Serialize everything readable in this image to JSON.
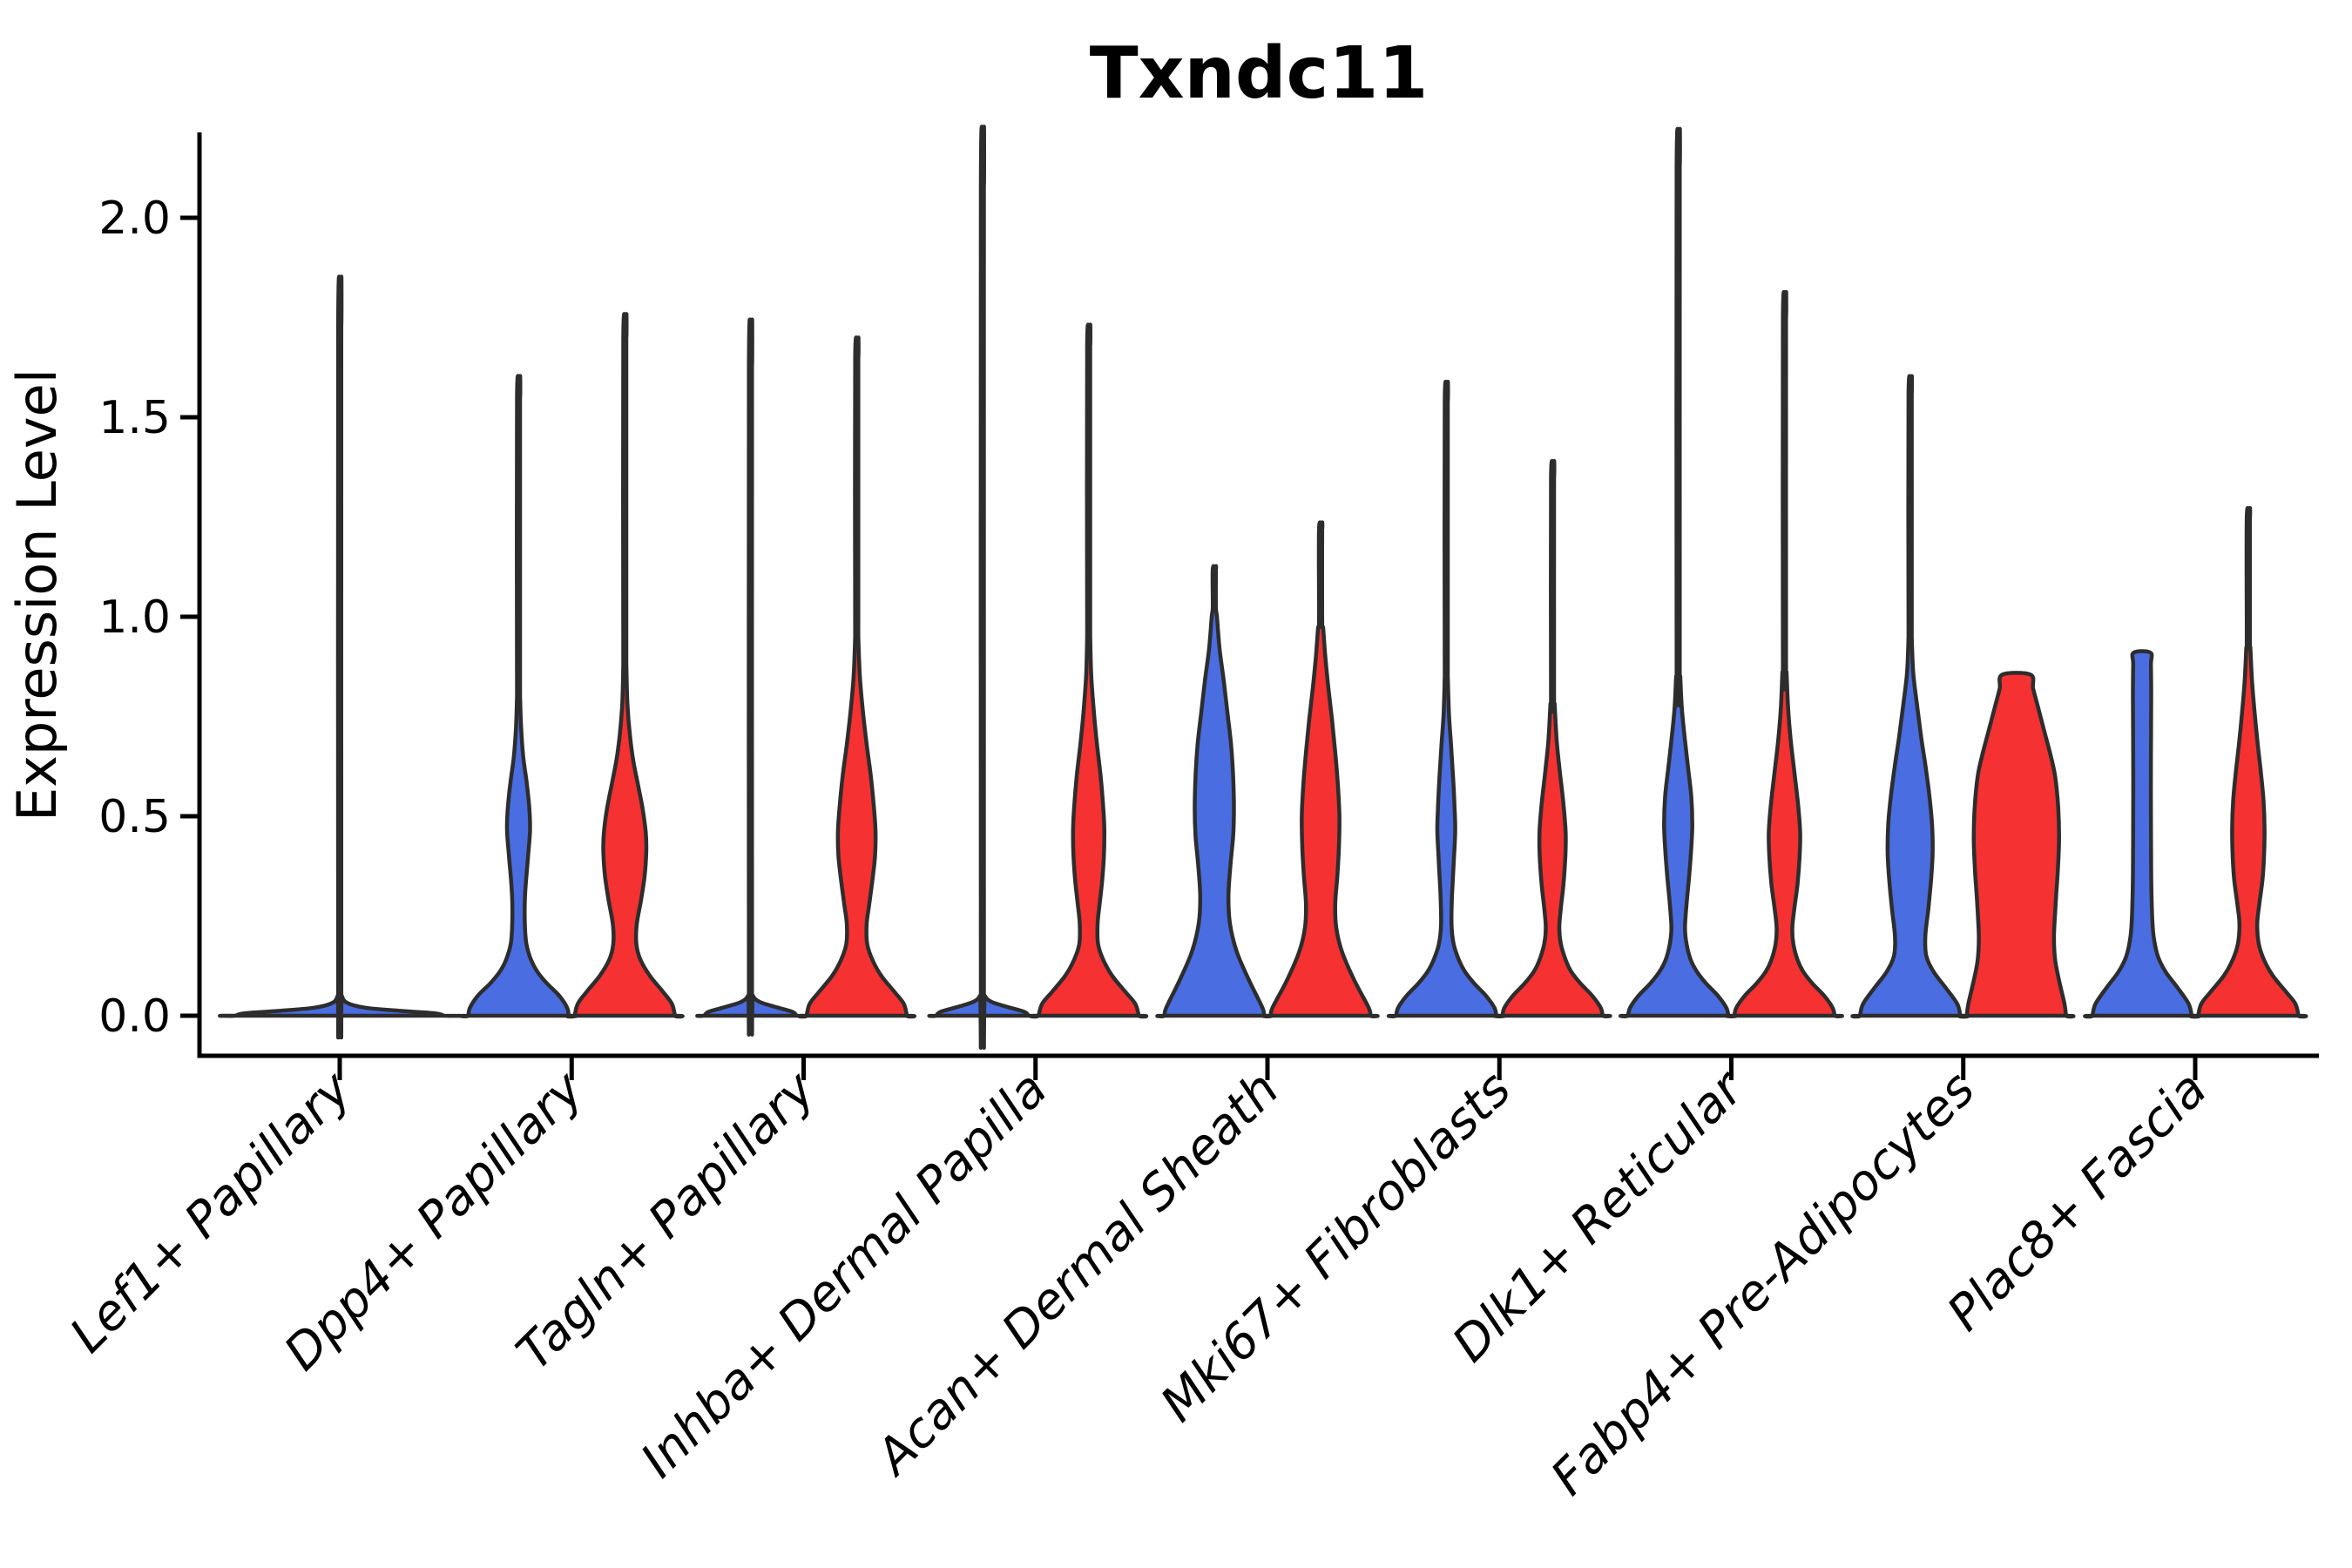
{
  "figure": {
    "title": "Txndc11"
  },
  "style": {
    "blue": "#4a6de1",
    "red": "#f53131",
    "violin_stroke": "#2d2d2d",
    "axis_color": "#000000",
    "text_color": "#000000",
    "background": "#ffffff"
  },
  "chart_data": {
    "type": "violin",
    "title": "Txndc11",
    "xlabel": "",
    "ylabel": "Expression Level",
    "ylim": [
      -0.1,
      2.2
    ],
    "grid": false,
    "legend": "none",
    "yticks": [
      0.0,
      0.5,
      1.0,
      1.5,
      2.0
    ],
    "ytick_labels": [
      "0.0",
      "0.5",
      "1.0",
      "1.5",
      "2.0"
    ],
    "categories": [
      "Lef1+ Papillary",
      "Dpp4+ Papillary",
      "Tagln+ Papillary",
      "Inhba+ Dermal Papilla",
      "Acan+ Dermal Sheath",
      "Mki67+ Fibroblasts",
      "Dlk1+ Reticular",
      "Fabp4+ Pre-Adipocytes",
      "Plac8+ Fascia"
    ],
    "groups": [
      {
        "id": "group1",
        "color_key": "blue"
      },
      {
        "id": "group2",
        "color_key": "red"
      }
    ],
    "violins": [
      {
        "category": 0,
        "group": "group1",
        "offset": 0,
        "halfwidth": 122,
        "max_expression": 1.73,
        "flat_top": false,
        "spike": 1.73,
        "profile": [
          [
            0,
            0.98
          ],
          [
            0.006,
            0.9
          ],
          [
            0.012,
            0.58
          ],
          [
            0.02,
            0.24
          ],
          [
            0.032,
            0.07
          ],
          [
            0.05,
            0.02
          ]
        ]
      },
      {
        "category": 1,
        "group": "group1",
        "offset": -61,
        "halfwidth": 60,
        "max_expression": 1.55,
        "flat_top": false,
        "spike": 1.55,
        "profile": [
          [
            0,
            0.96
          ],
          [
            0.02,
            0.93
          ],
          [
            0.05,
            0.78
          ],
          [
            0.08,
            0.55
          ],
          [
            0.11,
            0.36
          ],
          [
            0.14,
            0.24
          ],
          [
            0.18,
            0.15
          ],
          [
            0.23,
            0.12
          ],
          [
            0.29,
            0.12
          ],
          [
            0.35,
            0.15
          ],
          [
            0.41,
            0.19
          ],
          [
            0.47,
            0.22
          ],
          [
            0.53,
            0.2
          ],
          [
            0.59,
            0.15
          ],
          [
            0.65,
            0.09
          ],
          [
            0.72,
            0.05
          ],
          [
            0.8,
            0.03
          ]
        ]
      },
      {
        "category": 1,
        "group": "group2",
        "offset": 61,
        "halfwidth": 60,
        "max_expression": 1.7,
        "flat_top": false,
        "spike": 1.7,
        "profile": [
          [
            0,
            0.96
          ],
          [
            0.03,
            0.9
          ],
          [
            0.06,
            0.73
          ],
          [
            0.1,
            0.48
          ],
          [
            0.14,
            0.3
          ],
          [
            0.18,
            0.22
          ],
          [
            0.23,
            0.23
          ],
          [
            0.29,
            0.31
          ],
          [
            0.35,
            0.38
          ],
          [
            0.41,
            0.41
          ],
          [
            0.46,
            0.4
          ],
          [
            0.52,
            0.34
          ],
          [
            0.58,
            0.25
          ],
          [
            0.64,
            0.16
          ],
          [
            0.7,
            0.1
          ],
          [
            0.78,
            0.05
          ],
          [
            0.88,
            0.03
          ]
        ]
      },
      {
        "category": 2,
        "group": "group1",
        "offset": -61,
        "halfwidth": 57,
        "max_expression": 1.63,
        "flat_top": false,
        "spike": 1.63,
        "profile": [
          [
            0,
            0.93
          ],
          [
            0.01,
            0.84
          ],
          [
            0.022,
            0.5
          ],
          [
            0.035,
            0.18
          ],
          [
            0.05,
            0.05
          ]
        ]
      },
      {
        "category": 2,
        "group": "group2",
        "offset": 61,
        "halfwidth": 60,
        "max_expression": 1.65,
        "flat_top": false,
        "spike": 1.65,
        "profile": [
          [
            0,
            0.96
          ],
          [
            0.03,
            0.9
          ],
          [
            0.06,
            0.72
          ],
          [
            0.1,
            0.47
          ],
          [
            0.14,
            0.3
          ],
          [
            0.18,
            0.2
          ],
          [
            0.23,
            0.19
          ],
          [
            0.28,
            0.24
          ],
          [
            0.34,
            0.3
          ],
          [
            0.4,
            0.35
          ],
          [
            0.46,
            0.36
          ],
          [
            0.52,
            0.33
          ],
          [
            0.6,
            0.27
          ],
          [
            0.68,
            0.19
          ],
          [
            0.76,
            0.12
          ],
          [
            0.85,
            0.06
          ],
          [
            0.95,
            0.03
          ]
        ]
      },
      {
        "category": 3,
        "group": "group1",
        "offset": -61,
        "halfwidth": 57,
        "max_expression": 2.08,
        "flat_top": false,
        "spike": 2.08,
        "profile": [
          [
            0,
            0.93
          ],
          [
            0.01,
            0.84
          ],
          [
            0.022,
            0.5
          ],
          [
            0.035,
            0.18
          ],
          [
            0.05,
            0.05
          ]
        ]
      },
      {
        "category": 3,
        "group": "group2",
        "offset": 61,
        "halfwidth": 60,
        "max_expression": 1.68,
        "flat_top": false,
        "spike": 1.68,
        "profile": [
          [
            0,
            0.96
          ],
          [
            0.03,
            0.89
          ],
          [
            0.06,
            0.7
          ],
          [
            0.1,
            0.45
          ],
          [
            0.14,
            0.28
          ],
          [
            0.18,
            0.18
          ],
          [
            0.23,
            0.17
          ],
          [
            0.28,
            0.21
          ],
          [
            0.34,
            0.26
          ],
          [
            0.4,
            0.29
          ],
          [
            0.46,
            0.3
          ],
          [
            0.52,
            0.28
          ],
          [
            0.6,
            0.23
          ],
          [
            0.68,
            0.16
          ],
          [
            0.76,
            0.1
          ],
          [
            0.85,
            0.05
          ],
          [
            0.95,
            0.03
          ]
        ]
      },
      {
        "category": 4,
        "group": "group1",
        "offset": -61,
        "halfwidth": 60,
        "max_expression": 1.12,
        "flat_top": false,
        "spike": 1.12,
        "profile": [
          [
            0,
            0.95
          ],
          [
            0.02,
            0.92
          ],
          [
            0.09,
            0.66
          ],
          [
            0.16,
            0.43
          ],
          [
            0.23,
            0.3
          ],
          [
            0.3,
            0.27
          ],
          [
            0.38,
            0.31
          ],
          [
            0.45,
            0.36
          ],
          [
            0.52,
            0.375
          ],
          [
            0.6,
            0.36
          ],
          [
            0.68,
            0.32
          ],
          [
            0.76,
            0.25
          ],
          [
            0.84,
            0.18
          ],
          [
            0.92,
            0.1
          ],
          [
            1.0,
            0.05
          ]
        ]
      },
      {
        "category": 4,
        "group": "group2",
        "offset": 61,
        "halfwidth": 60,
        "max_expression": 1.22,
        "flat_top": false,
        "spike": 1.22,
        "profile": [
          [
            0,
            0.95
          ],
          [
            0.02,
            0.92
          ],
          [
            0.09,
            0.64
          ],
          [
            0.16,
            0.41
          ],
          [
            0.22,
            0.3
          ],
          [
            0.28,
            0.28
          ],
          [
            0.35,
            0.32
          ],
          [
            0.42,
            0.35
          ],
          [
            0.5,
            0.36
          ],
          [
            0.58,
            0.33
          ],
          [
            0.66,
            0.28
          ],
          [
            0.74,
            0.22
          ],
          [
            0.82,
            0.15
          ],
          [
            0.9,
            0.09
          ],
          [
            0.97,
            0.05
          ]
        ]
      },
      {
        "category": 5,
        "group": "group1",
        "offset": -61,
        "halfwidth": 60,
        "max_expression": 1.54,
        "flat_top": false,
        "spike": 1.54,
        "profile": [
          [
            0,
            0.96
          ],
          [
            0.02,
            0.92
          ],
          [
            0.05,
            0.76
          ],
          [
            0.08,
            0.54
          ],
          [
            0.11,
            0.36
          ],
          [
            0.14,
            0.24
          ],
          [
            0.18,
            0.14
          ],
          [
            0.23,
            0.1
          ],
          [
            0.3,
            0.11
          ],
          [
            0.38,
            0.14
          ],
          [
            0.46,
            0.17
          ],
          [
            0.52,
            0.16
          ],
          [
            0.6,
            0.13
          ],
          [
            0.68,
            0.09
          ],
          [
            0.76,
            0.05
          ],
          [
            0.85,
            0.03
          ]
        ]
      },
      {
        "category": 5,
        "group": "group2",
        "offset": 61,
        "halfwidth": 60,
        "max_expression": 1.35,
        "flat_top": false,
        "spike": 1.35,
        "profile": [
          [
            0,
            0.96
          ],
          [
            0.02,
            0.92
          ],
          [
            0.05,
            0.76
          ],
          [
            0.08,
            0.54
          ],
          [
            0.11,
            0.36
          ],
          [
            0.14,
            0.25
          ],
          [
            0.18,
            0.16
          ],
          [
            0.22,
            0.13
          ],
          [
            0.27,
            0.16
          ],
          [
            0.33,
            0.21
          ],
          [
            0.4,
            0.245
          ],
          [
            0.46,
            0.25
          ],
          [
            0.53,
            0.21
          ],
          [
            0.61,
            0.14
          ],
          [
            0.69,
            0.08
          ],
          [
            0.78,
            0.04
          ]
        ]
      },
      {
        "category": 6,
        "group": "group1",
        "offset": -61,
        "halfwidth": 60,
        "max_expression": 2.13,
        "flat_top": false,
        "spike": 2.13,
        "profile": [
          [
            0,
            0.96
          ],
          [
            0.02,
            0.92
          ],
          [
            0.05,
            0.76
          ],
          [
            0.08,
            0.54
          ],
          [
            0.11,
            0.36
          ],
          [
            0.14,
            0.24
          ],
          [
            0.18,
            0.16
          ],
          [
            0.22,
            0.13
          ],
          [
            0.28,
            0.16
          ],
          [
            0.35,
            0.21
          ],
          [
            0.42,
            0.25
          ],
          [
            0.48,
            0.27
          ],
          [
            0.55,
            0.25
          ],
          [
            0.62,
            0.19
          ],
          [
            0.69,
            0.13
          ],
          [
            0.77,
            0.07
          ],
          [
            0.85,
            0.04
          ]
        ]
      },
      {
        "category": 6,
        "group": "group2",
        "offset": 61,
        "halfwidth": 60,
        "max_expression": 1.75,
        "flat_top": false,
        "spike": 1.75,
        "profile": [
          [
            0,
            0.96
          ],
          [
            0.02,
            0.92
          ],
          [
            0.05,
            0.76
          ],
          [
            0.08,
            0.54
          ],
          [
            0.11,
            0.36
          ],
          [
            0.14,
            0.25
          ],
          [
            0.18,
            0.17
          ],
          [
            0.22,
            0.15
          ],
          [
            0.27,
            0.19
          ],
          [
            0.33,
            0.25
          ],
          [
            0.4,
            0.29
          ],
          [
            0.46,
            0.3
          ],
          [
            0.53,
            0.26
          ],
          [
            0.61,
            0.19
          ],
          [
            0.69,
            0.12
          ],
          [
            0.77,
            0.07
          ],
          [
            0.86,
            0.04
          ]
        ]
      },
      {
        "category": 7,
        "group": "group1",
        "offset": -61,
        "halfwidth": 60,
        "max_expression": 1.56,
        "flat_top": false,
        "spike": 1.56,
        "profile": [
          [
            0,
            0.96
          ],
          [
            0.03,
            0.9
          ],
          [
            0.07,
            0.68
          ],
          [
            0.11,
            0.45
          ],
          [
            0.15,
            0.31
          ],
          [
            0.2,
            0.29
          ],
          [
            0.27,
            0.35
          ],
          [
            0.34,
            0.4
          ],
          [
            0.41,
            0.43
          ],
          [
            0.48,
            0.42
          ],
          [
            0.55,
            0.37
          ],
          [
            0.62,
            0.3
          ],
          [
            0.7,
            0.21
          ],
          [
            0.78,
            0.13
          ],
          [
            0.86,
            0.06
          ],
          [
            0.95,
            0.03
          ]
        ]
      },
      {
        "category": 7,
        "group": "group2",
        "offset": 61,
        "halfwidth": 60,
        "max_expression": 0.855,
        "flat_top": true,
        "spike": null,
        "profile": [
          [
            0,
            0.95
          ],
          [
            0.03,
            0.92
          ],
          [
            0.08,
            0.83
          ],
          [
            0.14,
            0.74
          ],
          [
            0.2,
            0.72
          ],
          [
            0.28,
            0.75
          ],
          [
            0.36,
            0.79
          ],
          [
            0.44,
            0.815
          ],
          [
            0.52,
            0.8
          ],
          [
            0.6,
            0.74
          ],
          [
            0.66,
            0.64
          ],
          [
            0.72,
            0.52
          ],
          [
            0.78,
            0.4
          ],
          [
            0.82,
            0.32
          ],
          [
            0.855,
            0.27
          ]
        ]
      },
      {
        "category": 8,
        "group": "group1",
        "offset": -61,
        "halfwidth": 60,
        "max_expression": 0.91,
        "flat_top": true,
        "spike": null,
        "profile": [
          [
            0,
            0.95
          ],
          [
            0.03,
            0.89
          ],
          [
            0.07,
            0.68
          ],
          [
            0.11,
            0.45
          ],
          [
            0.15,
            0.3
          ],
          [
            0.2,
            0.22
          ],
          [
            0.26,
            0.19
          ],
          [
            0.35,
            0.175
          ],
          [
            0.5,
            0.17
          ],
          [
            0.65,
            0.17
          ],
          [
            0.8,
            0.175
          ],
          [
            0.88,
            0.17
          ],
          [
            0.91,
            0.16
          ]
        ]
      },
      {
        "category": 8,
        "group": "group2",
        "offset": 61,
        "halfwidth": 60,
        "max_expression": 1.25,
        "flat_top": false,
        "spike": 1.25,
        "profile": [
          [
            0,
            0.96
          ],
          [
            0.03,
            0.9
          ],
          [
            0.06,
            0.72
          ],
          [
            0.1,
            0.47
          ],
          [
            0.14,
            0.3
          ],
          [
            0.18,
            0.2
          ],
          [
            0.23,
            0.17
          ],
          [
            0.28,
            0.21
          ],
          [
            0.34,
            0.27
          ],
          [
            0.4,
            0.3
          ],
          [
            0.47,
            0.31
          ],
          [
            0.54,
            0.29
          ],
          [
            0.61,
            0.24
          ],
          [
            0.68,
            0.18
          ],
          [
            0.76,
            0.12
          ],
          [
            0.84,
            0.07
          ],
          [
            0.92,
            0.04
          ]
        ]
      }
    ]
  }
}
